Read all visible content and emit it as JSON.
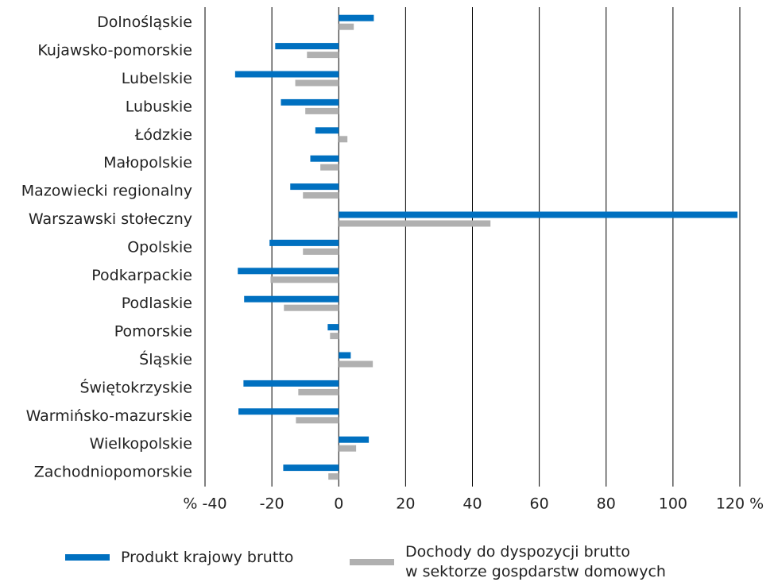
{
  "chart_data": {
    "type": "hbar",
    "categories": [
      "Dolnośląskie",
      "Kujawsko-pomorskie",
      "Lubelskie",
      "Lubuskie",
      "Łódzkie",
      "Małopolskie",
      "Mazowiecki regionalny",
      "Warszawski stołeczny",
      "Opolskie",
      "Podkarpackie",
      "Podlaskie",
      "Pomorskie",
      "Śląskie",
      "Świętokrzyskie",
      "Warmińsko-mazurskie",
      "Wielkopolskie",
      "Zachodniopomorskie"
    ],
    "series": [
      {
        "name": "Produkt krajowy brutto",
        "color": "#0070c0",
        "values": [
          10.5,
          -19,
          -31,
          -17.3,
          -7,
          -8.5,
          -14.5,
          119.3,
          -20.7,
          -30.2,
          -28.3,
          -3.3,
          3.6,
          -28.5,
          -30,
          9,
          -16.6
        ]
      },
      {
        "name": "Dochody do dyspozycji brutto\nw sektorze gospdarstw domowych",
        "color": "#b0b0b0",
        "values": [
          4.5,
          -9.5,
          -13,
          -10,
          2.6,
          -5.5,
          -10.7,
          45.4,
          -10.7,
          -20.4,
          -16.4,
          -2.6,
          10.2,
          -12.1,
          -12.8,
          5.2,
          -3.1
        ]
      }
    ],
    "xlim": [
      -40,
      120
    ],
    "xticks": [
      {
        "value": -40,
        "label": "% -40"
      },
      -20,
      0,
      20,
      40,
      60,
      80,
      100,
      {
        "value": 120,
        "label": "120 %"
      }
    ],
    "grid": true
  }
}
